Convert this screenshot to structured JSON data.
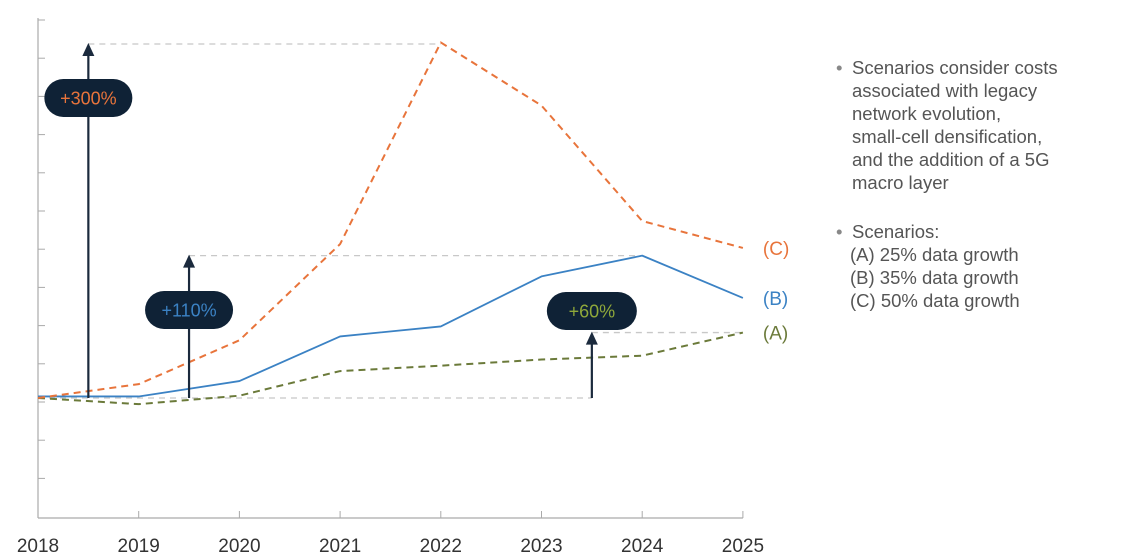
{
  "chart_data": {
    "type": "line",
    "title": "",
    "xlabel": "",
    "ylabel": "",
    "x": [
      "2018",
      "2019",
      "2020",
      "2021",
      "2022",
      "2023",
      "2024",
      "2025"
    ],
    "ylim": [
      -50,
      450
    ],
    "grid": false,
    "series": [
      {
        "name": "(A)",
        "values": [
          0,
          -8,
          3,
          35,
          42,
          50,
          55,
          85
        ],
        "color": "#6b7a3a",
        "style": "dashed"
      },
      {
        "name": "(B)",
        "values": [
          2,
          2,
          22,
          80,
          93,
          158,
          185,
          130
        ],
        "color": "#3b82c4",
        "style": "solid"
      },
      {
        "name": "(C)",
        "values": [
          0,
          18,
          75,
          200,
          462,
          380,
          230,
          195
        ],
        "color": "#e8743b",
        "style": "dashed"
      }
    ],
    "annotations": [
      {
        "label": "+300%",
        "year_position": 2018.5,
        "from": 0,
        "to": 460,
        "text_color": "#e8743b"
      },
      {
        "label": "+110%",
        "year_position": 2019.5,
        "from": 0,
        "to": 185,
        "text_color": "#3b82c4"
      },
      {
        "label": "+60%",
        "year_position": 2023.5,
        "from": 0,
        "to": 85,
        "text_color": "#8fa83a"
      }
    ]
  },
  "notes": {
    "bullet": "•",
    "note1_lines": [
      "Scenarios consider costs",
      "associated with legacy",
      "network evolution,",
      "small-cell densification,",
      "and the addition of a 5G",
      "macro layer"
    ],
    "note2_heading": "Scenarios:",
    "note2_lines": [
      "(A) 25% data growth",
      "(B) 35% data growth",
      "(C) 50% data growth"
    ]
  },
  "colors": {
    "axis": "#aaaaaa",
    "guide": "#c8c8c8",
    "arrow": "#1b2a3d",
    "badge": "#0f2236"
  }
}
